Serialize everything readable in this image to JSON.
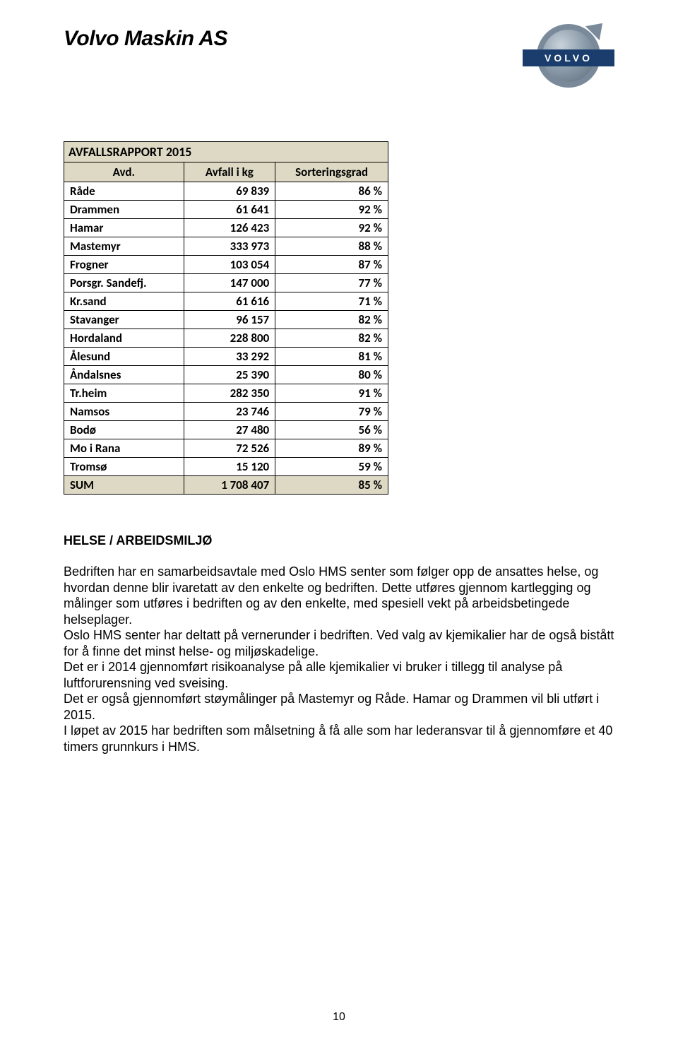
{
  "header": {
    "company_name": "Volvo Maskin AS",
    "logo_text": "VOLVO",
    "logo_band_color": "#1a3d6d",
    "logo_ring_color": "#7a8a9a"
  },
  "table": {
    "title": "AVFALLSRAPPORT 2015",
    "title_bg": "#ddd9c4",
    "header_bg": "#ddd9c4",
    "border_color": "#000000",
    "columns": [
      "Avd.",
      "Avfall i kg",
      "Sorteringsgrad"
    ],
    "rows": [
      {
        "avd": "Råde",
        "kg": "69 839",
        "grad": "86 %"
      },
      {
        "avd": "Drammen",
        "kg": "61 641",
        "grad": "92 %"
      },
      {
        "avd": "Hamar",
        "kg": "126 423",
        "grad": "92 %"
      },
      {
        "avd": "Mastemyr",
        "kg": "333 973",
        "grad": "88 %"
      },
      {
        "avd": "Frogner",
        "kg": "103 054",
        "grad": "87 %"
      },
      {
        "avd": "Porsgr. Sandefj.",
        "kg": "147 000",
        "grad": "77 %"
      },
      {
        "avd": "Kr.sand",
        "kg": "61 616",
        "grad": "71 %"
      },
      {
        "avd": "Stavanger",
        "kg": "96 157",
        "grad": "82 %"
      },
      {
        "avd": "Hordaland",
        "kg": "228 800",
        "grad": "82 %"
      },
      {
        "avd": "Ålesund",
        "kg": "33 292",
        "grad": "81 %"
      },
      {
        "avd": "Åndalsnes",
        "kg": "25 390",
        "grad": "80 %"
      },
      {
        "avd": "Tr.heim",
        "kg": "282 350",
        "grad": "91 %"
      },
      {
        "avd": "Namsos",
        "kg": "23 746",
        "grad": "79 %"
      },
      {
        "avd": "Bodø",
        "kg": "27 480",
        "grad": "56 %"
      },
      {
        "avd": "Mo i Rana",
        "kg": "72 526",
        "grad": "89 %"
      },
      {
        "avd": "Tromsø",
        "kg": "15 120",
        "grad": "59 %"
      }
    ],
    "sum": {
      "label": "SUM",
      "kg": "1 708 407",
      "grad": "85 %"
    }
  },
  "section": {
    "heading": "HELSE / ARBEIDSMILJØ",
    "p1": "Bedriften har en samarbeidsavtale med Oslo HMS senter som følger opp de ansattes helse, og hvordan denne blir ivaretatt av den enkelte og bedriften. Dette utføres gjennom kartlegging og målinger som utføres i bedriften og av den enkelte, med spesiell vekt på arbeidsbetingede helseplager.",
    "p2": "Oslo HMS senter har deltatt på vernerunder i bedriften. Ved valg av kjemikalier har de også bistått for å finne det minst helse- og miljøskadelige.",
    "p3": "Det er i 2014 gjennomført risikoanalyse på alle kjemikalier vi bruker i tillegg til analyse på luftforurensning ved sveising.",
    "p4": "Det er også gjennomført støymålinger på Mastemyr og Råde. Hamar og Drammen vil bli utført i 2015.",
    "p5": "I løpet av 2015 har bedriften som målsetning å få alle som har lederansvar til å gjennomføre et 40 timers grunnkurs i HMS."
  },
  "page_number": "10"
}
